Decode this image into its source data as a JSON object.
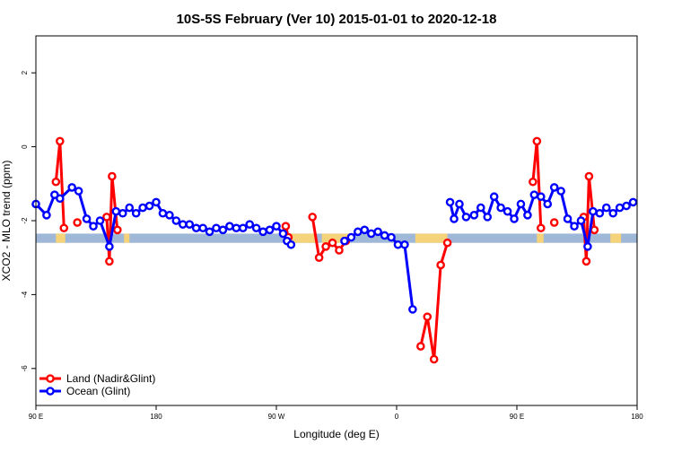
{
  "chart_data": {
    "type": "line",
    "title": "10S-5S February (Ver 10)   2015-01-01 to 2020-12-18",
    "xlabel": "Longitude (deg E)",
    "ylabel": "XCO2 - MLO trend (ppm)",
    "xlim": [
      90,
      540
    ],
    "ylim": [
      -7.0,
      3.0
    ],
    "x_ticks": [
      {
        "value": 90,
        "label": "90 E"
      },
      {
        "value": 180,
        "label": "180"
      },
      {
        "value": 270,
        "label": "90 W"
      },
      {
        "value": 360,
        "label": "0"
      },
      {
        "value": 450,
        "label": "90 E"
      },
      {
        "value": 540,
        "label": "180"
      }
    ],
    "y_ticks": [
      {
        "value": 2,
        "label": "2"
      },
      {
        "value": 0,
        "label": "0"
      },
      {
        "value": -2,
        "label": "-2"
      },
      {
        "value": -4,
        "label": "-4"
      },
      {
        "value": -6,
        "label": "-6"
      }
    ],
    "colors": {
      "land": "#ff0000",
      "ocean": "#0000ff",
      "band": "#9fb8d8",
      "land_fill": "#f5d37a"
    },
    "legend_position": "bottom-left",
    "background_band": {
      "y_min": -2.6,
      "y_max": -2.35
    },
    "land_fill_ranges": [
      [
        105,
        112
      ],
      [
        156,
        160
      ],
      [
        276,
        300
      ],
      [
        304,
        325
      ],
      [
        374,
        398
      ],
      [
        465,
        470
      ],
      [
        520,
        528
      ]
    ],
    "series": [
      {
        "name": "Land (Nadir&Glint)",
        "color": "#ff0000",
        "segments": [
          [
            [
              105,
              -0.95
            ],
            [
              108,
              0.15
            ],
            [
              111,
              -2.2
            ]
          ],
          [
            [
              121,
              -2.05
            ]
          ],
          [
            [
              143,
              -1.9
            ],
            [
              145,
              -3.1
            ],
            [
              147,
              -0.8
            ],
            [
              151,
              -2.25
            ]
          ],
          [
            [
              277,
              -2.15
            ],
            [
              279,
              -2.45
            ]
          ],
          [
            [
              297,
              -1.9
            ],
            [
              302,
              -3.0
            ],
            [
              307,
              -2.7
            ],
            [
              312,
              -2.6
            ],
            [
              317,
              -2.8
            ],
            [
              322,
              -2.55
            ]
          ],
          [
            [
              378,
              -5.4
            ],
            [
              383,
              -4.6
            ],
            [
              388,
              -5.75
            ],
            [
              393,
              -3.2
            ],
            [
              398,
              -2.6
            ]
          ],
          [
            [
              462,
              -0.95
            ],
            [
              465,
              0.15
            ],
            [
              468,
              -2.2
            ]
          ],
          [
            [
              478,
              -2.05
            ]
          ],
          [
            [
              500,
              -1.9
            ],
            [
              502,
              -3.1
            ],
            [
              504,
              -0.8
            ],
            [
              508,
              -2.25
            ]
          ]
        ]
      },
      {
        "name": "Ocean (Glint)",
        "color": "#0000ff",
        "segments": [
          [
            [
              90,
              -1.55
            ],
            [
              98,
              -1.85
            ],
            [
              104,
              -1.3
            ],
            [
              108,
              -1.4
            ],
            [
              117,
              -1.1
            ],
            [
              122,
              -1.2
            ],
            [
              128,
              -1.95
            ],
            [
              133,
              -2.15
            ],
            [
              138,
              -2.0
            ],
            [
              145,
              -2.7
            ],
            [
              150,
              -1.75
            ],
            [
              155,
              -1.8
            ],
            [
              160,
              -1.65
            ],
            [
              165,
              -1.8
            ],
            [
              170,
              -1.65
            ],
            [
              175,
              -1.6
            ],
            [
              180,
              -1.5
            ],
            [
              185,
              -1.8
            ],
            [
              190,
              -1.85
            ],
            [
              195,
              -2.0
            ],
            [
              200,
              -2.1
            ],
            [
              205,
              -2.1
            ],
            [
              210,
              -2.2
            ],
            [
              215,
              -2.2
            ],
            [
              220,
              -2.3
            ],
            [
              225,
              -2.2
            ],
            [
              230,
              -2.25
            ],
            [
              235,
              -2.15
            ],
            [
              240,
              -2.2
            ],
            [
              245,
              -2.2
            ],
            [
              250,
              -2.1
            ],
            [
              255,
              -2.2
            ],
            [
              260,
              -2.3
            ],
            [
              265,
              -2.25
            ],
            [
              270,
              -2.15
            ],
            [
              275,
              -2.35
            ],
            [
              278,
              -2.55
            ],
            [
              281,
              -2.65
            ]
          ],
          [
            [
              321,
              -2.55
            ],
            [
              326,
              -2.45
            ],
            [
              331,
              -2.3
            ],
            [
              336,
              -2.25
            ],
            [
              341,
              -2.35
            ],
            [
              346,
              -2.3
            ],
            [
              351,
              -2.4
            ],
            [
              356,
              -2.45
            ],
            [
              361,
              -2.65
            ],
            [
              366,
              -2.65
            ],
            [
              372,
              -4.4
            ]
          ],
          [
            [
              400,
              -1.5
            ],
            [
              403,
              -1.95
            ],
            [
              407,
              -1.55
            ],
            [
              412,
              -1.9
            ],
            [
              418,
              -1.85
            ],
            [
              423,
              -1.65
            ],
            [
              428,
              -1.9
            ],
            [
              433,
              -1.35
            ],
            [
              438,
              -1.65
            ],
            [
              443,
              -1.75
            ],
            [
              448,
              -1.95
            ],
            [
              453,
              -1.55
            ],
            [
              458,
              -1.85
            ],
            [
              463,
              -1.3
            ],
            [
              468,
              -1.35
            ],
            [
              473,
              -1.55
            ],
            [
              478,
              -1.1
            ],
            [
              483,
              -1.2
            ],
            [
              488,
              -1.95
            ],
            [
              493,
              -2.15
            ],
            [
              498,
              -2.0
            ],
            [
              503,
              -2.7
            ],
            [
              507,
              -1.75
            ],
            [
              512,
              -1.8
            ],
            [
              517,
              -1.65
            ],
            [
              522,
              -1.8
            ],
            [
              527,
              -1.65
            ],
            [
              532,
              -1.6
            ],
            [
              537,
              -1.5
            ]
          ]
        ]
      }
    ]
  }
}
